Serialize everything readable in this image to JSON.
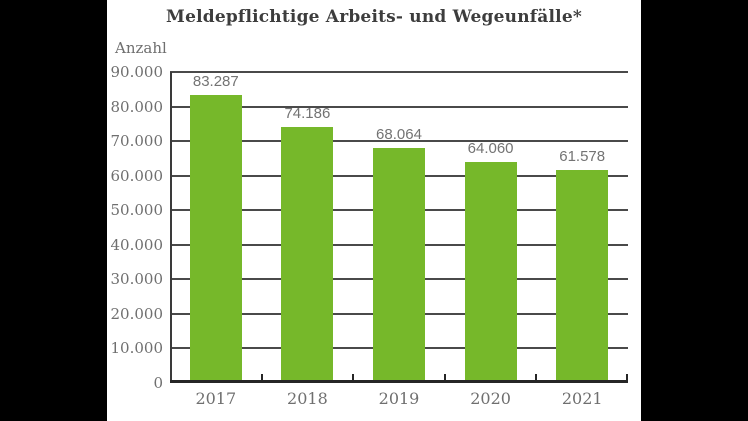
{
  "frame": {
    "pillarbox_color": "#000000",
    "panel_background": "#ffffff"
  },
  "chart_data": {
    "type": "bar",
    "title": "Meldepflichtige Arbeits- und Wegeunfälle*",
    "ylabel": "Anzahl",
    "xlabel": "",
    "categories": [
      "2017",
      "2018",
      "2019",
      "2020",
      "2021"
    ],
    "values": [
      83287,
      74186,
      68064,
      64060,
      61578
    ],
    "value_labels": [
      "83.287",
      "74.186",
      "68.064",
      "64.060",
      "61.578"
    ],
    "series_name": "Meldepflichtige Arbeits- und Wegeunfälle",
    "ylim": [
      0,
      90000
    ],
    "y_ticks": [
      {
        "value": 0,
        "label": "0"
      },
      {
        "value": 10000,
        "label": "10.000"
      },
      {
        "value": 20000,
        "label": "20.000"
      },
      {
        "value": 30000,
        "label": "30.000"
      },
      {
        "value": 40000,
        "label": "40.000"
      },
      {
        "value": 50000,
        "label": "50.000"
      },
      {
        "value": 60000,
        "label": "60.000"
      },
      {
        "value": 70000,
        "label": "70.000"
      },
      {
        "value": 80000,
        "label": "80.000"
      },
      {
        "value": 90000,
        "label": "90.000"
      }
    ],
    "grid": true,
    "legend": "none",
    "colors": {
      "bar": "#76b82a",
      "gridline": "#4a4a4a",
      "axis": "#262626",
      "title": "#3d3d3d",
      "labels": "#6f6f6f",
      "value_labels": "#737373"
    }
  }
}
